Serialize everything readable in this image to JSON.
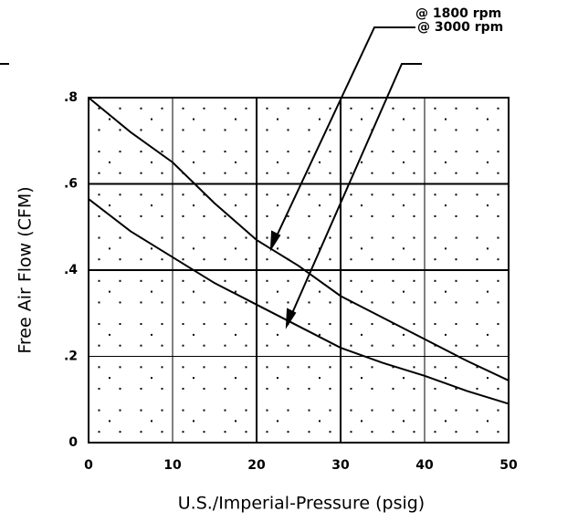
{
  "chart_data": {
    "type": "line",
    "x_label": "U.S./Imperial-Pressure (psig)",
    "y_label": "Free Air Flow (CFM)",
    "x": [
      0,
      5,
      10,
      15,
      20,
      25,
      30,
      35,
      40,
      45,
      50
    ],
    "series": [
      {
        "name": "@ 3000 rpm",
        "color": "#000000",
        "values": [
          0.8,
          0.72,
          0.65,
          0.555,
          0.47,
          0.41,
          0.34,
          0.29,
          0.24,
          0.19,
          0.144
        ]
      },
      {
        "name": "@ 1800 rpm",
        "color": "#000000",
        "values": [
          0.565,
          0.49,
          0.43,
          0.37,
          0.32,
          0.27,
          0.22,
          0.185,
          0.155,
          0.12,
          0.09
        ]
      }
    ],
    "xlim": [
      0,
      50
    ],
    "ylim": [
      0,
      0.8
    ],
    "xticks": [
      0,
      10,
      20,
      30,
      40,
      50
    ],
    "yticks": [
      0,
      {
        "value": 0.2,
        "label": ".2"
      },
      {
        "value": 0.4,
        "label": ".4"
      },
      {
        "value": 0.6,
        "label": ".6"
      },
      {
        "value": 0.8,
        "label": ".8"
      }
    ],
    "grid": true
  }
}
